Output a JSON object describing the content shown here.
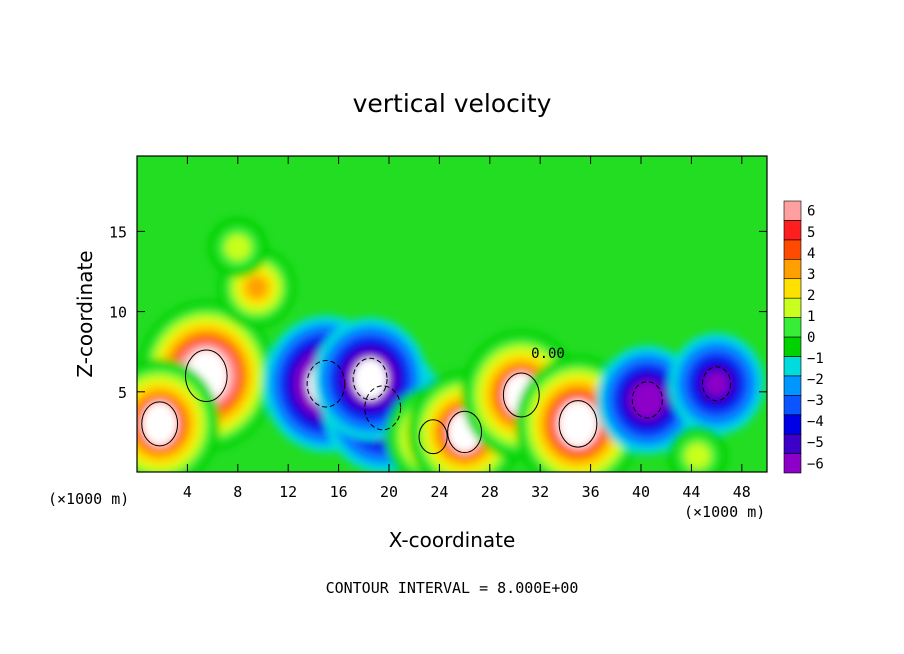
{
  "chart_data": {
    "type": "heatmap",
    "title": "vertical velocity",
    "xlabel": "X-coordinate",
    "ylabel": "Z-coordinate",
    "x_unit_label": "(×1000 m)",
    "y_unit_label": "(×1000 m)",
    "xlim": [
      0,
      50
    ],
    "ylim": [
      0,
      19.7
    ],
    "x_ticks": [
      4,
      8,
      12,
      16,
      20,
      24,
      28,
      32,
      36,
      40,
      44,
      48
    ],
    "x_tick_labels": [
      "4",
      "8",
      "12",
      "16",
      "20",
      "24",
      "28",
      "32",
      "36",
      "40",
      "44",
      "48"
    ],
    "y_ticks": [
      5,
      10,
      15
    ],
    "y_tick_labels": [
      "5",
      "10",
      "15"
    ],
    "colorbar": {
      "levels": [
        -6,
        -5,
        -4,
        -3,
        -2,
        -1,
        0,
        1,
        2,
        3,
        4,
        5,
        6
      ],
      "labels": [
        "−6",
        "−5",
        "−4",
        "−3",
        "−2",
        "−1",
        "0",
        "1",
        "2",
        "3",
        "4",
        "5",
        "6"
      ],
      "colors": [
        "#8c00c8",
        "#3c00c8",
        "#0000e6",
        "#0a55ff",
        "#0096ff",
        "#00dcdc",
        "#00d200",
        "#37ee37",
        "#c8ff1e",
        "#ffe100",
        "#ffa000",
        "#ff4b00",
        "#ff1e1e",
        "#ffa0a0"
      ]
    },
    "contour_label": "0.00",
    "contour_interval_text": "CONTOUR INTERVAL = 8.000E+00",
    "features": [
      {
        "x": 5.5,
        "z": 6.0,
        "w": 8.5,
        "type": "updraft"
      },
      {
        "x": 1.8,
        "z": 3.0,
        "w": 7.0,
        "type": "updraft"
      },
      {
        "x": 9.5,
        "z": 11.5,
        "w": 3.5,
        "type": "updraft"
      },
      {
        "x": 8.0,
        "z": 14.0,
        "w": 2.0,
        "type": "updraft"
      },
      {
        "x": 15.0,
        "z": 5.5,
        "w": -7.5,
        "type": "downdraft"
      },
      {
        "x": 19.5,
        "z": 4.0,
        "w": -7.0,
        "type": "downdraft"
      },
      {
        "x": 18.5,
        "z": 5.8,
        "w": -6.5,
        "type": "downdraft"
      },
      {
        "x": 23.5,
        "z": 2.2,
        "w": 5.0,
        "type": "updraft"
      },
      {
        "x": 26.0,
        "z": 2.5,
        "w": 6.5,
        "type": "updraft"
      },
      {
        "x": 30.5,
        "z": 4.8,
        "w": 7.0,
        "type": "updraft"
      },
      {
        "x": 35.0,
        "z": 3.0,
        "w": 7.5,
        "type": "updraft"
      },
      {
        "x": 40.5,
        "z": 4.5,
        "w": -5.5,
        "type": "downdraft"
      },
      {
        "x": 46.0,
        "z": 5.5,
        "w": -5.0,
        "type": "downdraft"
      },
      {
        "x": 44.5,
        "z": 1.0,
        "w": 2.0,
        "type": "updraft"
      }
    ]
  }
}
